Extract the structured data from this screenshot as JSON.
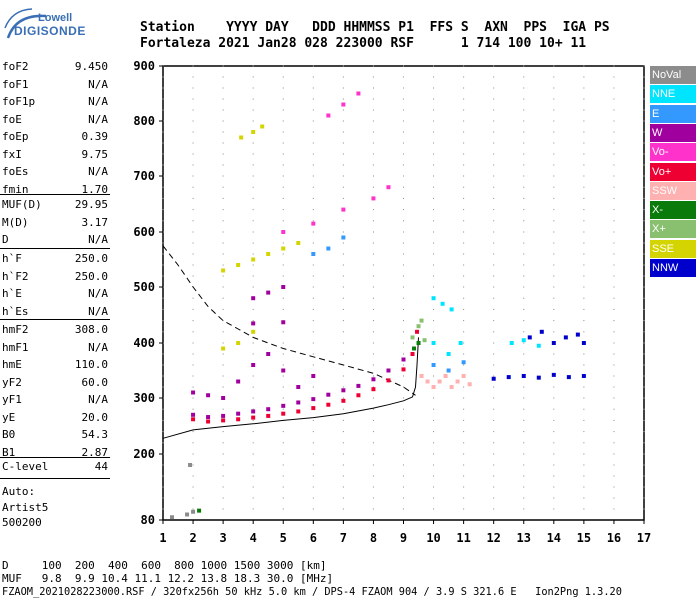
{
  "logo": {
    "line1": "Lowell",
    "line2": "DIGISONDE"
  },
  "header": {
    "row1": "Station    YYYY DAY   DDD HHMMSS P1  FFS S  AXN  PPS  IGA PS",
    "row2": "Fortaleza 2021 Jan28 028 223000 RSF      1 714 100 10+ 11"
  },
  "params_group1": [
    {
      "label": "foF2",
      "value": "9.450"
    },
    {
      "label": "foF1",
      "value": "N/A"
    },
    {
      "label": "foF1p",
      "value": "N/A"
    },
    {
      "label": "foE",
      "value": "N/A"
    },
    {
      "label": "foEp",
      "value": "0.39"
    },
    {
      "label": "fxI",
      "value": "9.75"
    },
    {
      "label": "foEs",
      "value": "N/A"
    },
    {
      "label": "fmin",
      "value": "1.70"
    }
  ],
  "params_group2": [
    {
      "label": "MUF(D)",
      "value": "29.95"
    },
    {
      "label": "M(D)",
      "value": "3.17"
    },
    {
      "label": "D",
      "value": "N/A"
    }
  ],
  "params_group3": [
    {
      "label": "h`F",
      "value": "250.0"
    },
    {
      "label": "h`F2",
      "value": "250.0"
    },
    {
      "label": "h`E",
      "value": "N/A"
    },
    {
      "label": "h`Es",
      "value": "N/A"
    }
  ],
  "params_group4": [
    {
      "label": "hmF2",
      "value": "308.0"
    },
    {
      "label": "hmF1",
      "value": "N/A"
    },
    {
      "label": "hmE",
      "value": "110.0"
    },
    {
      "label": "yF2",
      "value": "60.0"
    },
    {
      "label": "yF1",
      "value": "N/A"
    },
    {
      "label": "yE",
      "value": "20.0"
    },
    {
      "label": "B0",
      "value": "54.3"
    },
    {
      "label": "B1",
      "value": "2.87"
    }
  ],
  "params_group5": [
    {
      "label": "C-level",
      "value": "44"
    }
  ],
  "auto": {
    "line1": "Auto:",
    "line2": "Artist5",
    "line3": "500200"
  },
  "legend": [
    {
      "label": "NoVal",
      "color": "#8c8c8c"
    },
    {
      "label": "NNE",
      "color": "#00e5ff"
    },
    {
      "label": "E",
      "color": "#3399ff"
    },
    {
      "label": "W",
      "color": "#a0009e"
    },
    {
      "label": "Vo-",
      "color": "#ff33cc"
    },
    {
      "label": "Vo+",
      "color": "#ee0033"
    },
    {
      "label": "SSW",
      "color": "#ffb0b0"
    },
    {
      "label": "X-",
      "color": "#0a7a0a"
    },
    {
      "label": "X+",
      "color": "#88c070"
    },
    {
      "label": "SSE",
      "color": "#d4d400"
    },
    {
      "label": "NNW",
      "color": "#0000cc"
    }
  ],
  "footer": {
    "line1": "D     100  200  400  600  800 1000 1500 3000 [km]",
    "line2": "MUF   9.8  9.9 10.4 11.1 12.2 13.8 18.3 30.0 [MHz]",
    "line3": "FZAOM_2021028223000.RSF / 320fx256h 50 kHz 5.0 km / DPS-4 FZAOM 904 / 3.9 S 321.6 E   Ion2Png 1.3.20"
  },
  "chart_data": {
    "type": "scatter",
    "xlim": [
      1,
      17
    ],
    "ylim": [
      80,
      900
    ],
    "xticks": [
      "1",
      "2",
      "3",
      "4",
      "5",
      "6",
      "7",
      "8",
      "9",
      "10",
      "11",
      "12",
      "13",
      "14",
      "15",
      "16",
      "17"
    ],
    "yticks": [
      "80",
      "200",
      "300",
      "400",
      "500",
      "600",
      "700",
      "800",
      "900"
    ],
    "grid": true,
    "series": [
      {
        "name": "Vo+",
        "color": "#ee0033",
        "points": [
          [
            2.0,
            262
          ],
          [
            2.5,
            258
          ],
          [
            3.0,
            260
          ],
          [
            3.5,
            262
          ],
          [
            4.0,
            265
          ],
          [
            4.5,
            268
          ],
          [
            5.0,
            272
          ],
          [
            5.5,
            276
          ],
          [
            6.0,
            282
          ],
          [
            6.5,
            288
          ],
          [
            7.0,
            295
          ],
          [
            7.5,
            305
          ],
          [
            8.0,
            316
          ],
          [
            8.5,
            332
          ],
          [
            9.0,
            352
          ],
          [
            9.3,
            380
          ],
          [
            9.45,
            420
          ]
        ]
      },
      {
        "name": "W",
        "color": "#a0009e",
        "points": [
          [
            2.0,
            270
          ],
          [
            2.5,
            266
          ],
          [
            3.0,
            268
          ],
          [
            3.5,
            272
          ],
          [
            4.0,
            276
          ],
          [
            4.5,
            280
          ],
          [
            5.0,
            286
          ],
          [
            5.5,
            292
          ],
          [
            6.0,
            298
          ],
          [
            6.5,
            306
          ],
          [
            7.0,
            314
          ],
          [
            7.5,
            322
          ],
          [
            8.0,
            334
          ],
          [
            8.5,
            350
          ],
          [
            9.0,
            370
          ],
          [
            3.0,
            300
          ],
          [
            3.5,
            330
          ],
          [
            4.0,
            360
          ],
          [
            4.5,
            380
          ],
          [
            5.0,
            350
          ],
          [
            5.5,
            320
          ],
          [
            6.0,
            340
          ],
          [
            4.0,
            435
          ],
          [
            5.0,
            437
          ],
          [
            4.0,
            480
          ],
          [
            4.5,
            490
          ],
          [
            5.0,
            500
          ],
          [
            2.0,
            310
          ],
          [
            2.5,
            305
          ]
        ]
      },
      {
        "name": "X+",
        "color": "#88c070",
        "points": [
          [
            9.3,
            410
          ],
          [
            9.5,
            430
          ],
          [
            9.6,
            440
          ],
          [
            9.7,
            405
          ]
        ]
      },
      {
        "name": "SSW",
        "color": "#ffb0b0",
        "points": [
          [
            9.6,
            340
          ],
          [
            9.8,
            330
          ],
          [
            10.0,
            320
          ],
          [
            10.2,
            330
          ],
          [
            10.4,
            340
          ],
          [
            10.6,
            320
          ],
          [
            10.8,
            330
          ],
          [
            11.0,
            340
          ],
          [
            11.2,
            325
          ]
        ]
      },
      {
        "name": "NNE",
        "color": "#00e5ff",
        "points": [
          [
            10.0,
            480
          ],
          [
            10.3,
            470
          ],
          [
            10.6,
            460
          ],
          [
            10.0,
            400
          ],
          [
            10.5,
            380
          ],
          [
            10.9,
            400
          ],
          [
            12.6,
            400
          ],
          [
            13.0,
            405
          ],
          [
            13.5,
            395
          ]
        ]
      },
      {
        "name": "E",
        "color": "#3399ff",
        "points": [
          [
            10.0,
            360
          ],
          [
            10.5,
            350
          ],
          [
            11.0,
            365
          ],
          [
            6.0,
            560
          ],
          [
            6.5,
            570
          ],
          [
            7.0,
            590
          ]
        ]
      },
      {
        "name": "NNW",
        "color": "#0000cc",
        "points": [
          [
            12.0,
            335
          ],
          [
            12.5,
            338
          ],
          [
            13.0,
            340
          ],
          [
            13.5,
            337
          ],
          [
            14.0,
            342
          ],
          [
            14.5,
            338
          ],
          [
            15.0,
            340
          ],
          [
            13.2,
            410
          ],
          [
            13.6,
            420
          ],
          [
            14.0,
            400
          ],
          [
            14.4,
            410
          ],
          [
            14.8,
            415
          ],
          [
            15.0,
            400
          ]
        ]
      },
      {
        "name": "SSE",
        "color": "#d4d400",
        "points": [
          [
            3.0,
            530
          ],
          [
            3.5,
            540
          ],
          [
            4.0,
            550
          ],
          [
            4.5,
            560
          ],
          [
            5.0,
            570
          ],
          [
            5.5,
            580
          ],
          [
            3.0,
            390
          ],
          [
            3.5,
            400
          ],
          [
            4.0,
            420
          ],
          [
            3.6,
            770
          ],
          [
            4.0,
            780
          ],
          [
            4.3,
            790
          ]
        ]
      },
      {
        "name": "Vo-",
        "color": "#ff33cc",
        "points": [
          [
            5.0,
            600
          ],
          [
            6.0,
            615
          ],
          [
            7.0,
            640
          ],
          [
            8.0,
            660
          ],
          [
            8.5,
            680
          ],
          [
            6.5,
            810
          ],
          [
            7.0,
            830
          ],
          [
            7.5,
            850
          ]
        ]
      },
      {
        "name": "X-",
        "color": "#0a7a0a",
        "points": [
          [
            9.35,
            390
          ],
          [
            9.5,
            400
          ],
          [
            2.2,
            97
          ]
        ]
      },
      {
        "name": "NoVal",
        "color": "#8c8c8c",
        "points": [
          [
            1.3,
            85
          ],
          [
            1.8,
            90
          ],
          [
            2.0,
            95
          ],
          [
            1.9,
            180
          ]
        ]
      }
    ],
    "profile_solid": [
      [
        1.0,
        228
      ],
      [
        2.0,
        243
      ],
      [
        3.0,
        249
      ],
      [
        4.0,
        254
      ],
      [
        5.0,
        260
      ],
      [
        6.0,
        265
      ],
      [
        7.0,
        272
      ],
      [
        8.0,
        282
      ],
      [
        8.5,
        288
      ],
      [
        9.0,
        295
      ],
      [
        9.3,
        302
      ],
      [
        9.4,
        320
      ],
      [
        9.45,
        360
      ],
      [
        9.5,
        410
      ]
    ],
    "muf_dashed": [
      [
        1.0,
        575
      ],
      [
        1.5,
        540
      ],
      [
        2.0,
        500
      ],
      [
        2.5,
        465
      ],
      [
        3.0,
        440
      ],
      [
        3.5,
        425
      ],
      [
        4.0,
        410
      ],
      [
        4.5,
        400
      ],
      [
        5.0,
        390
      ],
      [
        6.0,
        375
      ],
      [
        7.0,
        360
      ],
      [
        8.0,
        345
      ],
      [
        9.0,
        320
      ],
      [
        9.4,
        305
      ]
    ]
  }
}
